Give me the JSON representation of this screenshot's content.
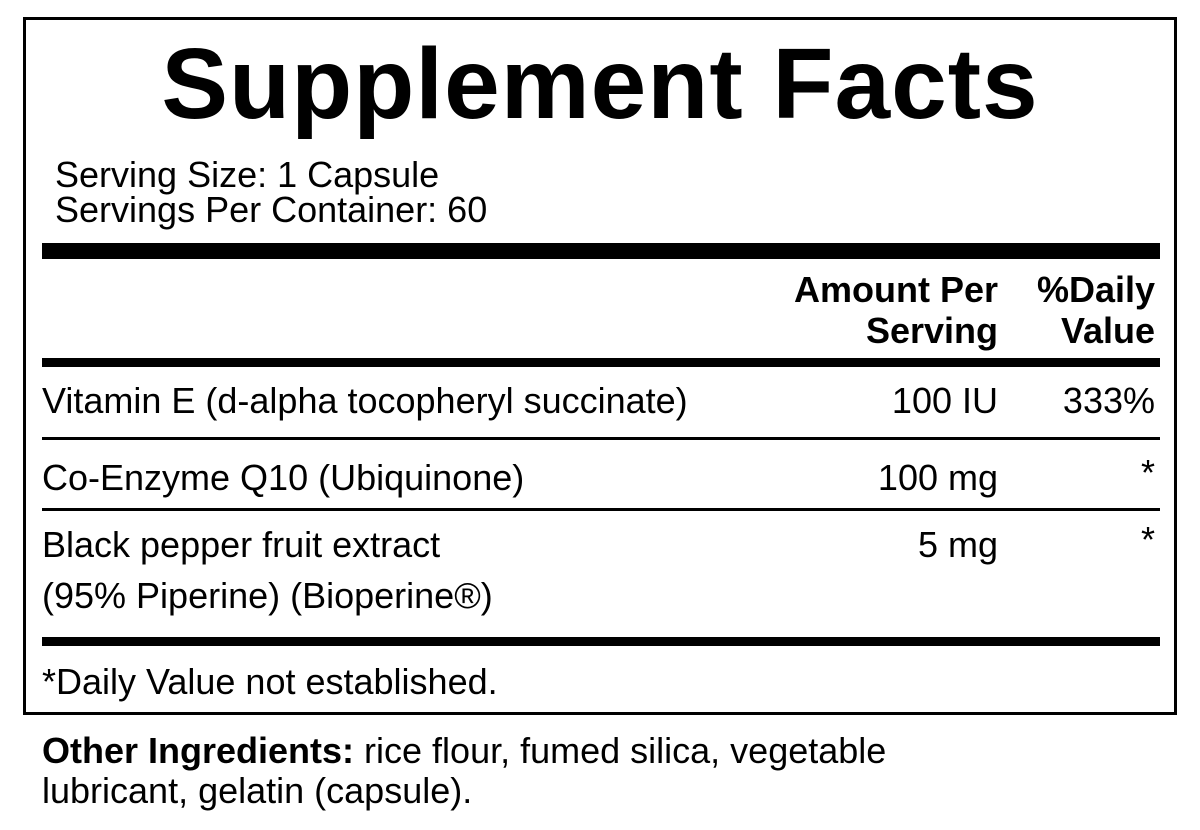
{
  "label": {
    "title": "Supplement Facts",
    "serving_size": "Serving Size: 1 Capsule",
    "servings_per_container": "Servings Per Container: 60",
    "header": {
      "amount_line1": "Amount Per",
      "amount_line2": "Serving",
      "dv_line1": "%Daily",
      "dv_line2": "Value"
    },
    "rows": [
      {
        "name": "Vitamin E (d-alpha tocopheryl succinate)",
        "amount": "100 IU",
        "dv": "333%"
      },
      {
        "name": "Co-Enzyme Q10 (Ubiquinone)",
        "amount": "100 mg",
        "dv": "*"
      },
      {
        "name_line1": "Black pepper fruit extract",
        "name_line2": "(95% Piperine) (Bioperine®)",
        "amount": "5 mg",
        "dv": "*"
      }
    ],
    "footnote": "*Daily Value not established."
  },
  "other_ingredients": {
    "label": "Other Ingredients:",
    "text_line1": " rice flour, fumed silica, vegetable",
    "text_line2": "lubricant, gelatin (capsule)."
  }
}
